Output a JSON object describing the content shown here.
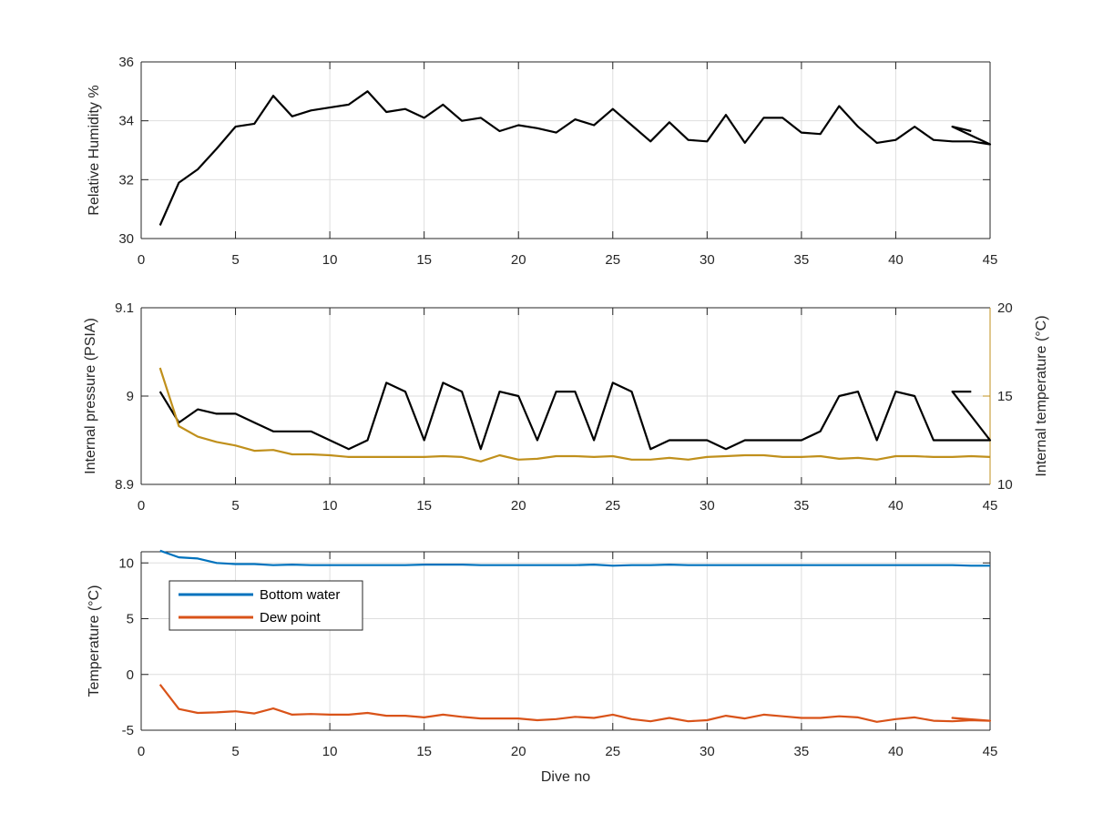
{
  "chart_data": [
    {
      "type": "line",
      "xlabel": "",
      "ylabel": "Relative Humidity %",
      "xlim": [
        0,
        45
      ],
      "ylim": [
        30,
        36
      ],
      "xticks": [
        "0",
        "5",
        "10",
        "15",
        "20",
        "25",
        "30",
        "35",
        "40",
        "45"
      ],
      "yticks": [
        "30",
        "32",
        "34",
        "36"
      ],
      "grid": true,
      "series": [
        {
          "color": "#000000",
          "x": [
            1,
            2,
            3,
            4,
            5,
            6,
            7,
            8,
            9,
            10,
            11,
            12,
            13,
            14,
            15,
            16,
            17,
            18,
            19,
            20,
            21,
            22,
            23,
            24,
            25,
            26,
            27,
            28,
            29,
            30,
            31,
            32,
            33,
            34,
            35,
            36,
            37,
            38,
            39,
            40,
            41,
            42,
            43,
            44,
            45,
            43,
            44
          ],
          "values": [
            30.45,
            31.9,
            32.35,
            33.05,
            33.8,
            33.9,
            34.85,
            34.15,
            34.35,
            34.45,
            34.55,
            35.0,
            34.3,
            34.4,
            34.1,
            34.55,
            34.0,
            34.1,
            33.65,
            33.85,
            33.75,
            33.6,
            34.05,
            33.85,
            34.4,
            33.85,
            33.3,
            33.95,
            33.35,
            33.3,
            34.2,
            33.25,
            34.1,
            34.1,
            33.6,
            33.55,
            34.5,
            33.8,
            33.25,
            33.35,
            33.8,
            33.35,
            33.3,
            33.3,
            33.2,
            33.8,
            33.65
          ]
        }
      ]
    },
    {
      "type": "line",
      "xlabel": "",
      "ylabel": "Internal pressure (PSIA)",
      "ylabel_right": "Internal temperature (°C)",
      "xlim": [
        0,
        45
      ],
      "ylim": [
        8.9,
        9.1
      ],
      "ylim_right": [
        10,
        20
      ],
      "xticks": [
        "0",
        "5",
        "10",
        "15",
        "20",
        "25",
        "30",
        "35",
        "40",
        "45"
      ],
      "yticks": [
        "8.9",
        "9",
        "9.1"
      ],
      "yticks_right": [
        "10",
        "15",
        "20"
      ],
      "grid": true,
      "series": [
        {
          "axis": "left",
          "color": "#000000",
          "x": [
            1,
            2,
            3,
            4,
            5,
            6,
            7,
            8,
            9,
            10,
            11,
            12,
            13,
            14,
            15,
            16,
            17,
            18,
            19,
            20,
            21,
            22,
            23,
            24,
            25,
            26,
            27,
            28,
            29,
            30,
            31,
            32,
            33,
            34,
            35,
            36,
            37,
            38,
            39,
            40,
            41,
            42,
            43,
            44,
            45,
            43,
            44
          ],
          "values": [
            9.005,
            8.97,
            8.985,
            8.98,
            8.98,
            8.97,
            8.96,
            8.96,
            8.96,
            8.95,
            8.94,
            8.95,
            9.015,
            9.005,
            8.95,
            9.015,
            9.005,
            8.94,
            9.005,
            9.0,
            8.95,
            9.005,
            9.005,
            8.95,
            9.015,
            9.005,
            8.94,
            8.95,
            8.95,
            8.95,
            8.94,
            8.95,
            8.95,
            8.95,
            8.95,
            8.96,
            9.0,
            9.005,
            8.95,
            9.005,
            9.0,
            8.95,
            8.95,
            8.95,
            8.95,
            9.005,
            9.005
          ]
        },
        {
          "axis": "right",
          "color": "#C0901C",
          "x": [
            1,
            2,
            3,
            4,
            5,
            6,
            7,
            8,
            9,
            10,
            11,
            12,
            13,
            14,
            15,
            16,
            17,
            18,
            19,
            20,
            21,
            22,
            23,
            24,
            25,
            26,
            27,
            28,
            29,
            30,
            31,
            32,
            33,
            34,
            35,
            36,
            37,
            38,
            39,
            40,
            41,
            42,
            43,
            44,
            45
          ],
          "values": [
            16.6,
            13.3,
            12.7,
            12.4,
            12.2,
            11.9,
            11.95,
            11.7,
            11.7,
            11.65,
            11.55,
            11.55,
            11.55,
            11.55,
            11.55,
            11.6,
            11.55,
            11.3,
            11.65,
            11.4,
            11.45,
            11.6,
            11.6,
            11.55,
            11.6,
            11.4,
            11.4,
            11.5,
            11.4,
            11.55,
            11.6,
            11.65,
            11.65,
            11.55,
            11.55,
            11.6,
            11.45,
            11.5,
            11.4,
            11.6,
            11.6,
            11.55,
            11.55,
            11.6,
            11.55
          ]
        }
      ]
    },
    {
      "type": "line",
      "xlabel": "Dive no",
      "ylabel": "Temperature (°C)",
      "xlim": [
        0,
        45
      ],
      "ylim": [
        -5,
        11
      ],
      "xticks": [
        "0",
        "5",
        "10",
        "15",
        "20",
        "25",
        "30",
        "35",
        "40",
        "45"
      ],
      "yticks": [
        "-5",
        "0",
        "5",
        "10"
      ],
      "ytick_values": [
        -5,
        0,
        5,
        10
      ],
      "grid": true,
      "legend": "top-left",
      "series": [
        {
          "name": "Bottom water",
          "color": "#0072BD",
          "x": [
            1,
            2,
            3,
            4,
            5,
            6,
            7,
            8,
            9,
            10,
            11,
            12,
            13,
            14,
            15,
            16,
            17,
            18,
            19,
            20,
            21,
            22,
            23,
            24,
            25,
            26,
            27,
            28,
            29,
            30,
            31,
            32,
            33,
            34,
            35,
            36,
            37,
            38,
            39,
            40,
            41,
            42,
            43,
            44,
            45
          ],
          "values": [
            11.1,
            10.5,
            10.4,
            10.0,
            9.9,
            9.9,
            9.8,
            9.85,
            9.8,
            9.8,
            9.8,
            9.8,
            9.8,
            9.8,
            9.85,
            9.85,
            9.85,
            9.8,
            9.8,
            9.8,
            9.8,
            9.8,
            9.8,
            9.85,
            9.75,
            9.8,
            9.8,
            9.85,
            9.8,
            9.8,
            9.8,
            9.8,
            9.8,
            9.8,
            9.8,
            9.8,
            9.8,
            9.8,
            9.8,
            9.8,
            9.8,
            9.8,
            9.8,
            9.75,
            9.75
          ]
        },
        {
          "name": "Dew point",
          "color": "#D95319",
          "x": [
            1,
            2,
            3,
            4,
            5,
            6,
            7,
            8,
            9,
            10,
            11,
            12,
            13,
            14,
            15,
            16,
            17,
            18,
            19,
            20,
            21,
            22,
            23,
            24,
            25,
            26,
            27,
            28,
            29,
            30,
            31,
            32,
            33,
            34,
            35,
            36,
            37,
            38,
            39,
            40,
            41,
            42,
            43,
            44,
            45,
            43,
            44
          ],
          "values": [
            -0.9,
            -3.1,
            -3.45,
            -3.4,
            -3.3,
            -3.5,
            -3.05,
            -3.6,
            -3.55,
            -3.6,
            -3.6,
            -3.45,
            -3.7,
            -3.7,
            -3.85,
            -3.6,
            -3.8,
            -3.95,
            -3.95,
            -3.95,
            -4.1,
            -4.0,
            -3.8,
            -3.9,
            -3.6,
            -4.0,
            -4.2,
            -3.9,
            -4.2,
            -4.1,
            -3.7,
            -3.95,
            -3.6,
            -3.75,
            -3.9,
            -3.9,
            -3.75,
            -3.85,
            -4.25,
            -4.0,
            -3.85,
            -4.15,
            -4.2,
            -4.1,
            -4.15,
            -3.9,
            -4.05
          ]
        }
      ]
    }
  ]
}
